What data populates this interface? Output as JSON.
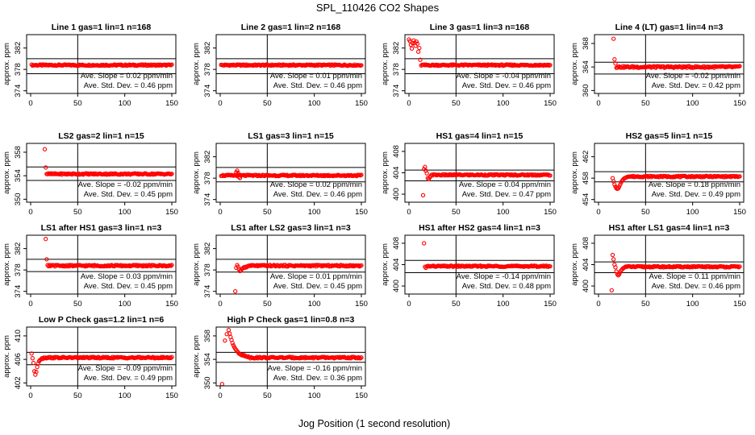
{
  "figure": {
    "title": "SPL_110426  CO2 Shapes",
    "xlabel": "Jog Position (1 second resolution)",
    "ylabel": "approx. ppm"
  },
  "chart_data": [
    {
      "type": "scatter",
      "title": "Line 1 gas=1 lin=1 n=168",
      "xlim": [
        0,
        150
      ],
      "xticks": [
        0,
        50,
        100,
        150
      ],
      "ylim": [
        373.5,
        384.5
      ],
      "yticks": [
        374,
        378,
        382
      ],
      "hlines": [
        380.0,
        377.2
      ],
      "vline": 50,
      "start": 1,
      "end": 150,
      "base": 378.8,
      "noise": 0.12,
      "early": [],
      "annotations": [
        "Ave. Slope = 0.02  ppm/min",
        "Ave. Std. Dev. = 0.46  ppm"
      ]
    },
    {
      "type": "scatter",
      "title": "Line 2 gas=1 lin=2 n=168",
      "xlim": [
        0,
        150
      ],
      "xticks": [
        0,
        50,
        100,
        150
      ],
      "ylim": [
        373.5,
        384.5
      ],
      "yticks": [
        374,
        378,
        382
      ],
      "hlines": [
        380.0,
        377.2
      ],
      "vline": 50,
      "start": 1,
      "end": 150,
      "base": 378.8,
      "noise": 0.12,
      "early": [],
      "annotations": [
        "Ave. Slope = 0.01  ppm/min",
        "Ave. Std. Dev. = 0.46  ppm"
      ]
    },
    {
      "type": "scatter",
      "title": "Line 3 gas=1 lin=3 n=168",
      "xlim": [
        0,
        150
      ],
      "xticks": [
        0,
        50,
        100,
        150
      ],
      "ylim": [
        373.5,
        384.5
      ],
      "yticks": [
        374,
        378,
        382
      ],
      "hlines": [
        380.0,
        377.2
      ],
      "vline": 50,
      "start": 13,
      "end": 150,
      "base": 378.8,
      "noise": 0.12,
      "early": [
        [
          0,
          383.6
        ],
        [
          1,
          383.3
        ],
        [
          2,
          382.6
        ],
        [
          3,
          381.9
        ],
        [
          4,
          382.9
        ],
        [
          5,
          383.4
        ],
        [
          6,
          383.0
        ],
        [
          7,
          382.4
        ],
        [
          8,
          383.2
        ],
        [
          9,
          382.8
        ],
        [
          10,
          381.3
        ],
        [
          11,
          382.0
        ],
        [
          12,
          379.8
        ]
      ],
      "annotations": [
        "Ave. Slope = -0.04  ppm/min",
        "Ave. Std. Dev. = 0.46  ppm"
      ]
    },
    {
      "type": "scatter",
      "title": "Line 4 (LT) gas=1 lin=4 n=3",
      "xlim": [
        0,
        150
      ],
      "xticks": [
        0,
        50,
        100,
        150
      ],
      "ylim": [
        359.5,
        369.5
      ],
      "yticks": [
        360,
        364,
        368
      ],
      "hlines": [
        364.8,
        362.8
      ],
      "vline": 50,
      "start": 19,
      "end": 150,
      "base": 364.0,
      "noise": 0.15,
      "early": [
        [
          16,
          368.8
        ],
        [
          17,
          365.3
        ],
        [
          18,
          364.6
        ]
      ],
      "annotations": [
        "Ave. Slope = -0.02  ppm/min",
        "Ave. Std. Dev. = 0.42  ppm"
      ]
    },
    {
      "type": "scatter",
      "title": "LS2 gas=2 lin=1 n=15",
      "xlim": [
        0,
        150
      ],
      "xticks": [
        0,
        50,
        100,
        150
      ],
      "ylim": [
        349.5,
        359.5
      ],
      "yticks": [
        350,
        354,
        358
      ],
      "hlines": [
        355.5,
        353.2
      ],
      "vline": 50,
      "start": 17,
      "end": 150,
      "base": 354.3,
      "noise": 0.12,
      "early": [
        [
          15,
          358.5
        ],
        [
          16,
          355.4
        ]
      ],
      "annotations": [
        "Ave. Slope = -0.02  ppm/min",
        "Ave. Std. Dev. = 0.45  ppm"
      ]
    },
    {
      "type": "scatter",
      "title": "LS1 gas=3 lin=1 n=15",
      "xlim": [
        0,
        150
      ],
      "xticks": [
        0,
        50,
        100,
        150
      ],
      "ylim": [
        373.5,
        384.5
      ],
      "yticks": [
        374,
        378,
        382
      ],
      "hlines": [
        380.0,
        377.3
      ],
      "vline": 50,
      "start": 1,
      "end": 150,
      "base": 378.5,
      "noise": 0.12,
      "early": [
        [
          17,
          379.1
        ],
        [
          18,
          379.4
        ],
        [
          19,
          379.0
        ],
        [
          20,
          378.2
        ],
        [
          21,
          378.0
        ]
      ],
      "annotations": [
        "Ave. Slope = 0.02  ppm/min",
        "Ave. Std. Dev. = 0.46  ppm"
      ]
    },
    {
      "type": "scatter",
      "title": "HS1 gas=4 lin=1 n=15",
      "xlim": [
        0,
        150
      ],
      "xticks": [
        0,
        50,
        100,
        150
      ],
      "ylim": [
        398.5,
        409.5
      ],
      "yticks": [
        400,
        404,
        408
      ],
      "hlines": [
        404.5,
        402.5
      ],
      "vline": 50,
      "start": 24,
      "end": 150,
      "base": 403.6,
      "noise": 0.12,
      "early": [
        [
          15,
          399.8
        ],
        [
          16,
          404.7
        ],
        [
          17,
          405.1
        ],
        [
          18,
          404.4
        ],
        [
          19,
          403.9
        ],
        [
          20,
          403.0
        ],
        [
          21,
          402.8
        ],
        [
          22,
          403.1
        ],
        [
          23,
          403.4
        ]
      ],
      "annotations": [
        "Ave. Slope = 0.04  ppm/min",
        "Ave. Std. Dev. = 0.47  ppm"
      ]
    },
    {
      "type": "scatter",
      "title": "HS2 gas=5 lin=1 n=15",
      "xlim": [
        0,
        150
      ],
      "xticks": [
        0,
        50,
        100,
        150
      ],
      "ylim": [
        453.5,
        464.5
      ],
      "yticks": [
        454,
        458,
        462
      ],
      "hlines": [
        459.2,
        457.3
      ],
      "vline": 50,
      "start": 30,
      "end": 150,
      "base": 458.3,
      "noise": 0.12,
      "early": [
        [
          15,
          458.0
        ],
        [
          16,
          457.4
        ],
        [
          17,
          456.8
        ],
        [
          18,
          456.4
        ],
        [
          19,
          456.1
        ],
        [
          20,
          456.0
        ],
        [
          21,
          456.1
        ],
        [
          22,
          456.4
        ],
        [
          23,
          456.8
        ],
        [
          24,
          457.2
        ],
        [
          25,
          457.5
        ],
        [
          26,
          457.7
        ],
        [
          27,
          457.9
        ],
        [
          28,
          458.0
        ],
        [
          29,
          458.1
        ]
      ],
      "annotations": [
        "Ave. Slope = 0.18  ppm/min",
        "Ave. Std. Dev. = 0.49  ppm"
      ]
    },
    {
      "type": "scatter",
      "title": "LS1 after HS1 gas=3 lin=1 n=3",
      "xlim": [
        0,
        150
      ],
      "xticks": [
        0,
        50,
        100,
        150
      ],
      "ylim": [
        373.5,
        384.5
      ],
      "yticks": [
        374,
        378,
        382
      ],
      "hlines": [
        380.0,
        377.7
      ],
      "vline": 50,
      "start": 20,
      "end": 150,
      "base": 378.8,
      "noise": 0.14,
      "early": [
        [
          16,
          383.8
        ],
        [
          17,
          380.0
        ],
        [
          18,
          378.9
        ],
        [
          19,
          378.7
        ]
      ],
      "annotations": [
        "Ave. Slope = 0.03  ppm/min",
        "Ave. Std. Dev. = 0.45  ppm"
      ]
    },
    {
      "type": "scatter",
      "title": "LS1 after LS2 gas=3 lin=1 n=3",
      "xlim": [
        0,
        150
      ],
      "xticks": [
        0,
        50,
        100,
        150
      ],
      "ylim": [
        373.5,
        384.5
      ],
      "yticks": [
        374,
        378,
        382
      ],
      "hlines": [
        380.0,
        377.6
      ],
      "vline": 50,
      "start": 30,
      "end": 150,
      "base": 378.8,
      "noise": 0.14,
      "early": [
        [
          16,
          374.0
        ],
        [
          17,
          378.4
        ],
        [
          18,
          378.9
        ],
        [
          19,
          378.6
        ],
        [
          20,
          378.1
        ],
        [
          21,
          377.8
        ],
        [
          22,
          377.9
        ],
        [
          23,
          378.2
        ],
        [
          24,
          378.3
        ],
        [
          25,
          378.5
        ],
        [
          26,
          378.4
        ],
        [
          27,
          378.6
        ],
        [
          28,
          378.5
        ],
        [
          29,
          378.7
        ]
      ],
      "annotations": [
        "Ave. Slope = 0.01  ppm/min",
        "Ave. Std. Dev. = 0.45  ppm"
      ]
    },
    {
      "type": "scatter",
      "title": "HS1 after HS2 gas=4 lin=1 n=3",
      "xlim": [
        0,
        150
      ],
      "xticks": [
        0,
        50,
        100,
        150
      ],
      "ylim": [
        398.5,
        409.5
      ],
      "yticks": [
        400,
        404,
        408
      ],
      "hlines": [
        404.8,
        402.5
      ],
      "vline": 50,
      "start": 19,
      "end": 150,
      "base": 403.7,
      "noise": 0.12,
      "early": [
        [
          16,
          408.0
        ],
        [
          17,
          403.6
        ],
        [
          18,
          403.4
        ]
      ],
      "annotations": [
        "Ave. Slope = -0.14  ppm/min",
        "Ave. Std. Dev. = 0.48  ppm"
      ]
    },
    {
      "type": "scatter",
      "title": "HS1 after LS1 gas=4 lin=1 n=3",
      "xlim": [
        0,
        150
      ],
      "xticks": [
        0,
        50,
        100,
        150
      ],
      "ylim": [
        398.5,
        409.5
      ],
      "yticks": [
        400,
        404,
        408
      ],
      "hlines": [
        404.5,
        402.5
      ],
      "vline": 50,
      "start": 28,
      "end": 150,
      "base": 403.6,
      "noise": 0.12,
      "early": [
        [
          14,
          399.2
        ],
        [
          15,
          405.8
        ],
        [
          16,
          405.0
        ],
        [
          17,
          404.0
        ],
        [
          18,
          403.5
        ],
        [
          19,
          402.7
        ],
        [
          20,
          402.2
        ],
        [
          21,
          402.0
        ],
        [
          22,
          402.2
        ],
        [
          23,
          402.6
        ],
        [
          24,
          402.9
        ],
        [
          25,
          403.1
        ],
        [
          26,
          403.3
        ],
        [
          27,
          403.4
        ]
      ],
      "annotations": [
        "Ave. Slope = 0.11  ppm/min",
        "Ave. Std. Dev. = 0.46  ppm"
      ]
    },
    {
      "type": "scatter",
      "title": "Low P Check gas=1.2 lin=1 n=6",
      "xlim": [
        0,
        150
      ],
      "xticks": [
        0,
        50,
        100,
        150
      ],
      "ylim": [
        401.5,
        411.5
      ],
      "yticks": [
        402,
        406,
        410
      ],
      "hlines": [
        407.2,
        405.1
      ],
      "vline": 50,
      "start": 18,
      "end": 150,
      "base": 406.3,
      "noise": 0.12,
      "early": [
        [
          1,
          407.0
        ],
        [
          2,
          406.2
        ],
        [
          3,
          405.4
        ],
        [
          4,
          404.0
        ],
        [
          5,
          403.4
        ],
        [
          6,
          403.9
        ],
        [
          7,
          404.7
        ],
        [
          8,
          405.3
        ],
        [
          9,
          405.7
        ],
        [
          10,
          405.9
        ],
        [
          11,
          406.0
        ],
        [
          12,
          406.2
        ],
        [
          13,
          406.1
        ],
        [
          14,
          406.3
        ],
        [
          15,
          406.2
        ],
        [
          16,
          406.3
        ],
        [
          17,
          406.2
        ]
      ],
      "annotations": [
        "Ave. Slope = -0.09  ppm/min",
        "Ave. Std. Dev. = 0.49  ppm"
      ]
    },
    {
      "type": "scatter",
      "title": "High P Check gas=1 lin=0.8 n=3",
      "xlim": [
        0,
        150
      ],
      "xticks": [
        0,
        50,
        100,
        150
      ],
      "ylim": [
        349.5,
        359.5
      ],
      "yticks": [
        350,
        354,
        358
      ],
      "hlines": [
        355.2,
        353.5
      ],
      "vline": 50,
      "start": 32,
      "end": 150,
      "base": 354.3,
      "noise": 0.12,
      "early": [
        [
          2,
          349.8
        ],
        [
          5,
          357.2
        ],
        [
          7,
          358.3
        ],
        [
          9,
          359.0
        ],
        [
          10,
          358.4
        ],
        [
          11,
          357.8
        ],
        [
          12,
          357.3
        ],
        [
          13,
          356.8
        ],
        [
          14,
          356.4
        ],
        [
          15,
          356.1
        ],
        [
          16,
          355.8
        ],
        [
          17,
          355.6
        ],
        [
          18,
          355.4
        ],
        [
          19,
          355.2
        ],
        [
          20,
          355.0
        ],
        [
          21,
          354.9
        ],
        [
          22,
          354.8
        ],
        [
          23,
          354.7
        ],
        [
          24,
          354.8
        ],
        [
          25,
          354.6
        ],
        [
          26,
          354.7
        ],
        [
          27,
          354.5
        ],
        [
          28,
          354.5
        ],
        [
          29,
          354.4
        ],
        [
          30,
          354.5
        ],
        [
          31,
          354.4
        ]
      ],
      "annotations": [
        "Ave. Slope = -0.16  ppm/min",
        "Ave. Std. Dev. = 0.36  ppm"
      ]
    }
  ]
}
